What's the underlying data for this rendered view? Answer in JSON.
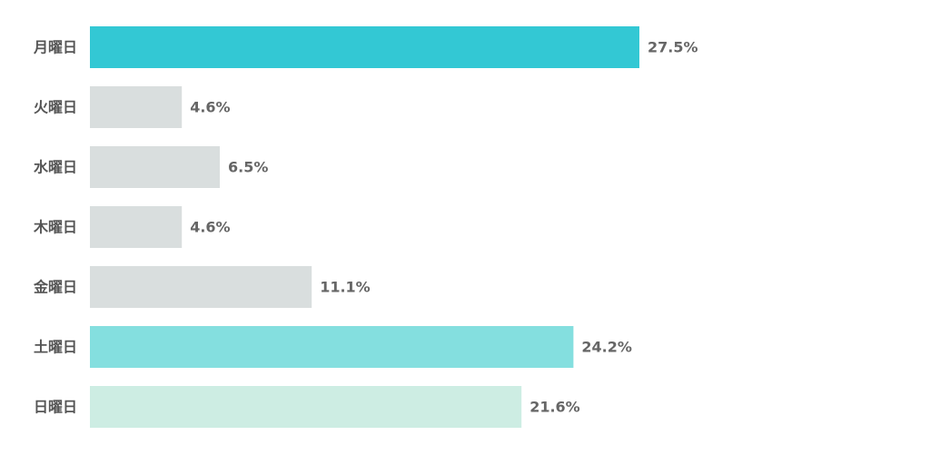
{
  "chart_data": {
    "type": "bar",
    "orientation": "horizontal",
    "title": "",
    "xlabel": "",
    "ylabel": "",
    "xlim": [
      0,
      37
    ],
    "grid": false,
    "categories": [
      "月曜日",
      "火曜日",
      "水曜日",
      "木曜日",
      "金曜日",
      "土曜日",
      "日曜日"
    ],
    "values": [
      27.5,
      4.6,
      6.5,
      4.6,
      11.1,
      24.2,
      21.6
    ],
    "value_labels": [
      "27.5%",
      "4.6%",
      "6.5%",
      "4.6%",
      "11.1%",
      "24.2%",
      "21.6%"
    ],
    "colors": [
      "#33c8d4",
      "#d9dede",
      "#d9dede",
      "#d9dede",
      "#d9dede",
      "#84dfdf",
      "#cdede3"
    ]
  }
}
